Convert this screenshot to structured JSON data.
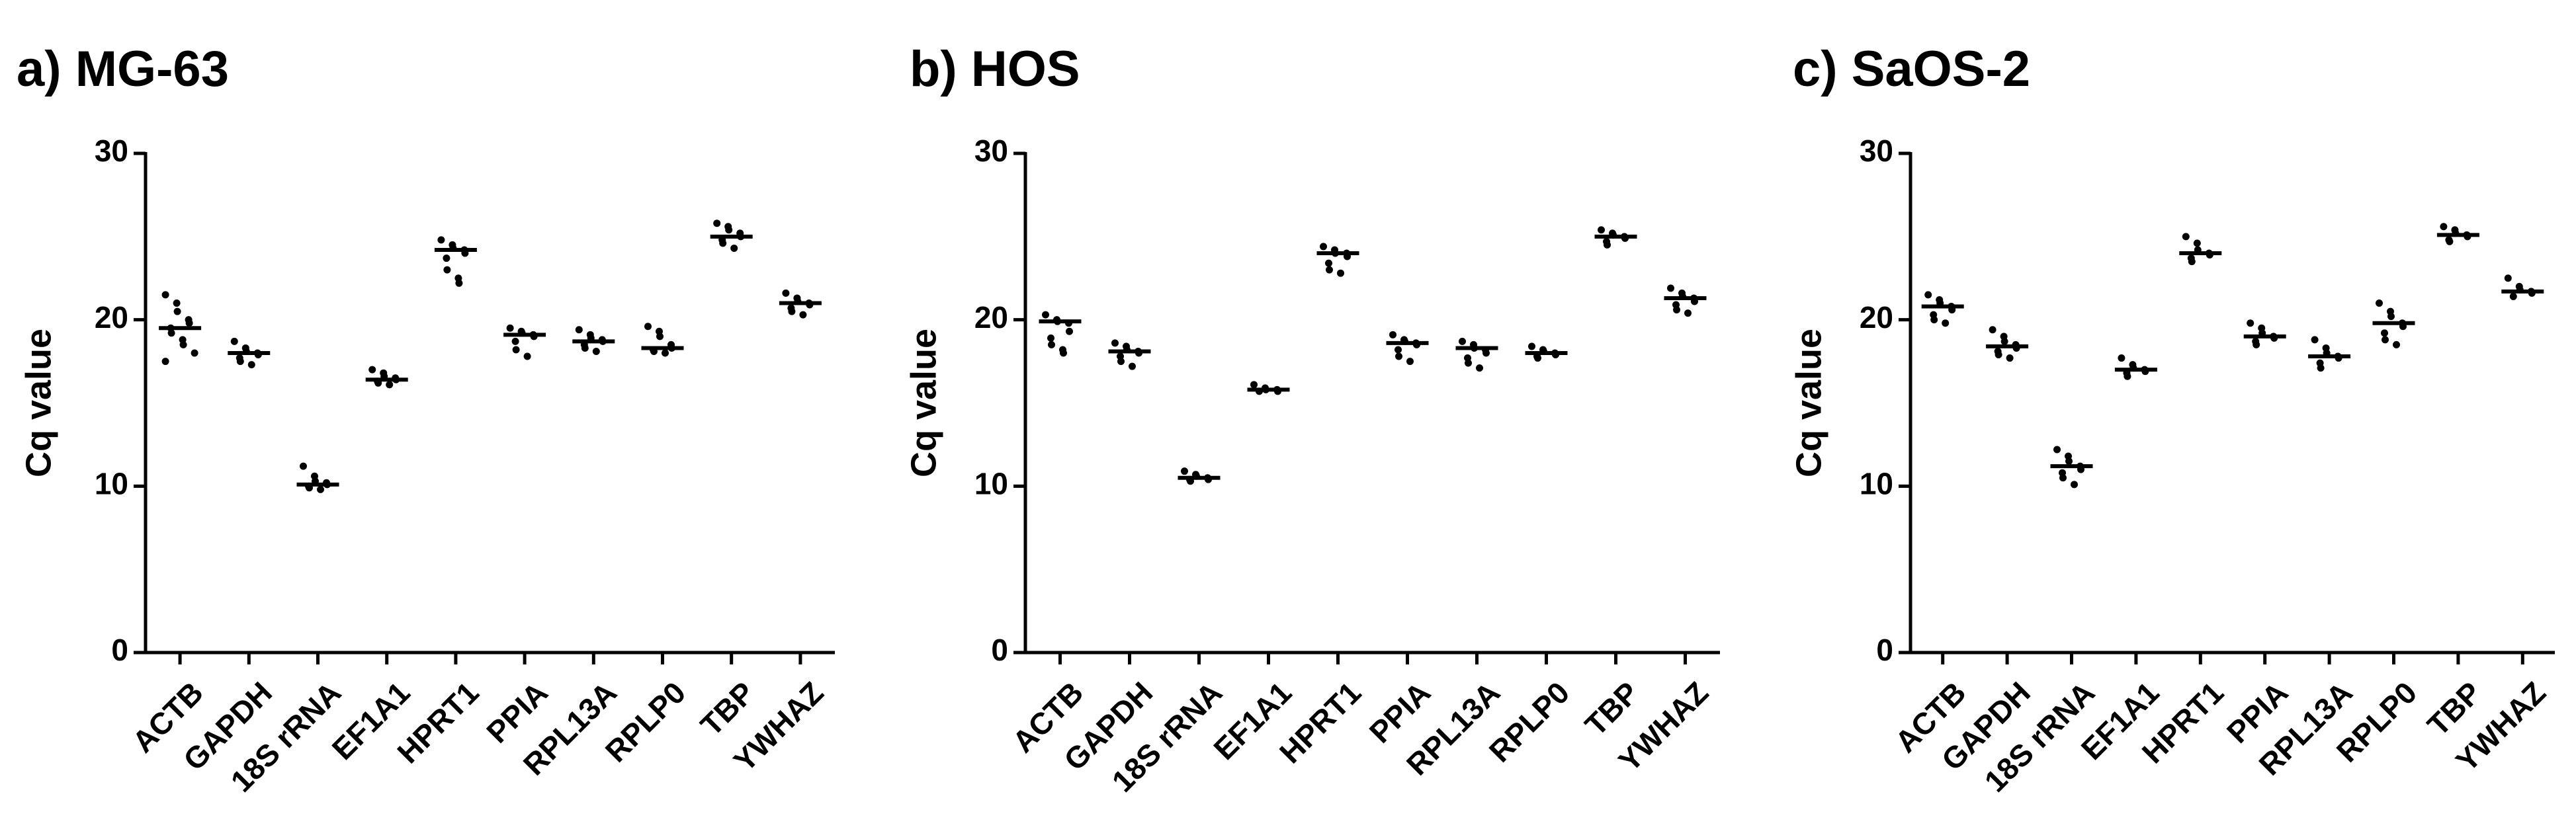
{
  "chart_data": [
    {
      "type": "strip",
      "title": "a) MG-63",
      "ylabel": "Cq value",
      "categories": [
        "ACTB",
        "GAPDH",
        "18S rRNA",
        "EF1A1",
        "HPRT1",
        "PPIA",
        "RPL13A",
        "RPLP0",
        "TBP",
        "YWHAZ"
      ],
      "values": [
        19.5,
        18,
        10.1,
        16.4,
        24.2,
        19.1,
        18.7,
        18.3,
        25,
        21
      ],
      "points": [
        [
          21.5,
          21,
          20.5,
          20,
          19.8,
          19.5,
          19.2,
          18.8,
          18.5,
          18,
          17.5
        ],
        [
          18.7,
          18.3,
          18.1,
          18,
          17.9,
          17.7,
          17.5,
          17.3
        ],
        [
          11.2,
          10.6,
          10.3,
          10.2,
          10.1,
          10,
          9.9,
          9.8
        ],
        [
          17,
          16.8,
          16.6,
          16.5,
          16.4,
          16.3,
          16.2,
          16.1
        ],
        [
          24.8,
          24.5,
          24.3,
          24.2,
          24,
          23.7,
          23,
          22.5,
          22.2
        ],
        [
          19.5,
          19.3,
          19.2,
          19.1,
          19,
          18.7,
          18.2,
          17.8
        ],
        [
          19.4,
          19.1,
          18.9,
          18.8,
          18.7,
          18.5,
          18.3,
          18.1
        ],
        [
          19.6,
          19.3,
          19,
          18.5,
          18.3,
          18.2,
          18.1,
          18
        ],
        [
          25.8,
          25.6,
          25.4,
          25.2,
          25,
          24.8,
          24.6,
          24.3
        ],
        [
          21.6,
          21.3,
          21.1,
          21,
          20.9,
          20.7,
          20.5,
          20.3
        ]
      ],
      "color": "#000000",
      "ylim": [
        0,
        30
      ],
      "yticks": [
        0,
        10,
        20,
        30
      ]
    },
    {
      "type": "strip",
      "title": "b) HOS",
      "ylabel": "Cq value",
      "categories": [
        "ACTB",
        "GAPDH",
        "18S rRNA",
        "EF1A1",
        "HPRT1",
        "PPIA",
        "RPL13A",
        "RPLP0",
        "TBP",
        "YWHAZ"
      ],
      "values": [
        19.9,
        18.1,
        10.5,
        15.8,
        24,
        18.6,
        18.3,
        18,
        25,
        21.3
      ],
      "points": [
        [
          20.3,
          20,
          19.9,
          19.8,
          19.3,
          18.9,
          18.5,
          18.2,
          18
        ],
        [
          18.6,
          18.4,
          18.2,
          18.1,
          18,
          17.8,
          17.5,
          17.2
        ],
        [
          10.9,
          10.7,
          10.6,
          10.5,
          10.4,
          10.4,
          10.3
        ],
        [
          16.1,
          15.9,
          15.8,
          15.8,
          15.7,
          15.7
        ],
        [
          24.4,
          24.2,
          24,
          24,
          23.8,
          23.4,
          23,
          22.8
        ],
        [
          19.1,
          18.8,
          18.7,
          18.6,
          18.5,
          18.2,
          17.8,
          17.5
        ],
        [
          18.7,
          18.5,
          18.3,
          18.2,
          18,
          17.7,
          17.4,
          17.1
        ],
        [
          18.4,
          18.2,
          18.1,
          18,
          17.9,
          17.8,
          17.7
        ],
        [
          25.4,
          25.2,
          25.1,
          25,
          24.9,
          24.7,
          24.5
        ],
        [
          21.9,
          21.6,
          21.4,
          21.3,
          21.1,
          20.9,
          20.6,
          20.4
        ]
      ],
      "color": "#000000",
      "ylim": [
        0,
        30
      ],
      "yticks": [
        0,
        10,
        20,
        30
      ]
    },
    {
      "type": "strip",
      "title": "c) SaOS-2",
      "ylabel": "Cq value",
      "categories": [
        "ACTB",
        "GAPDH",
        "18S rRNA",
        "EF1A1",
        "HPRT1",
        "PPIA",
        "RPL13A",
        "RPLP0",
        "TBP",
        "YWHAZ"
      ],
      "values": [
        20.8,
        18.4,
        11.2,
        17,
        24,
        19,
        17.8,
        19.8,
        25.1,
        21.7
      ],
      "points": [
        [
          21.5,
          21.2,
          21,
          20.8,
          20.6,
          20.3,
          20,
          19.8
        ],
        [
          19.4,
          19,
          18.7,
          18.5,
          18.3,
          18.1,
          17.9,
          17.7
        ],
        [
          12.2,
          11.8,
          11.5,
          11.2,
          11,
          10.8,
          10.5,
          10.1
        ],
        [
          17.7,
          17.3,
          17.1,
          17,
          16.9,
          16.8,
          16.6
        ],
        [
          25,
          24.6,
          24.2,
          24,
          23.9,
          23.7,
          23.5
        ],
        [
          19.8,
          19.5,
          19.2,
          19,
          18.9,
          18.7,
          18.5
        ],
        [
          18.8,
          18.3,
          18,
          17.8,
          17.7,
          17.4,
          17.1
        ],
        [
          21,
          20.5,
          20.2,
          19.8,
          19.6,
          19.2,
          18.8,
          18.5
        ],
        [
          25.6,
          25.4,
          25.2,
          25.1,
          25,
          24.8,
          24.7
        ],
        [
          22.5,
          22,
          21.8,
          21.7,
          21.6,
          21.4
        ]
      ],
      "color": "#000000",
      "ylim": [
        0,
        30
      ],
      "yticks": [
        0,
        10,
        20,
        30
      ]
    }
  ]
}
